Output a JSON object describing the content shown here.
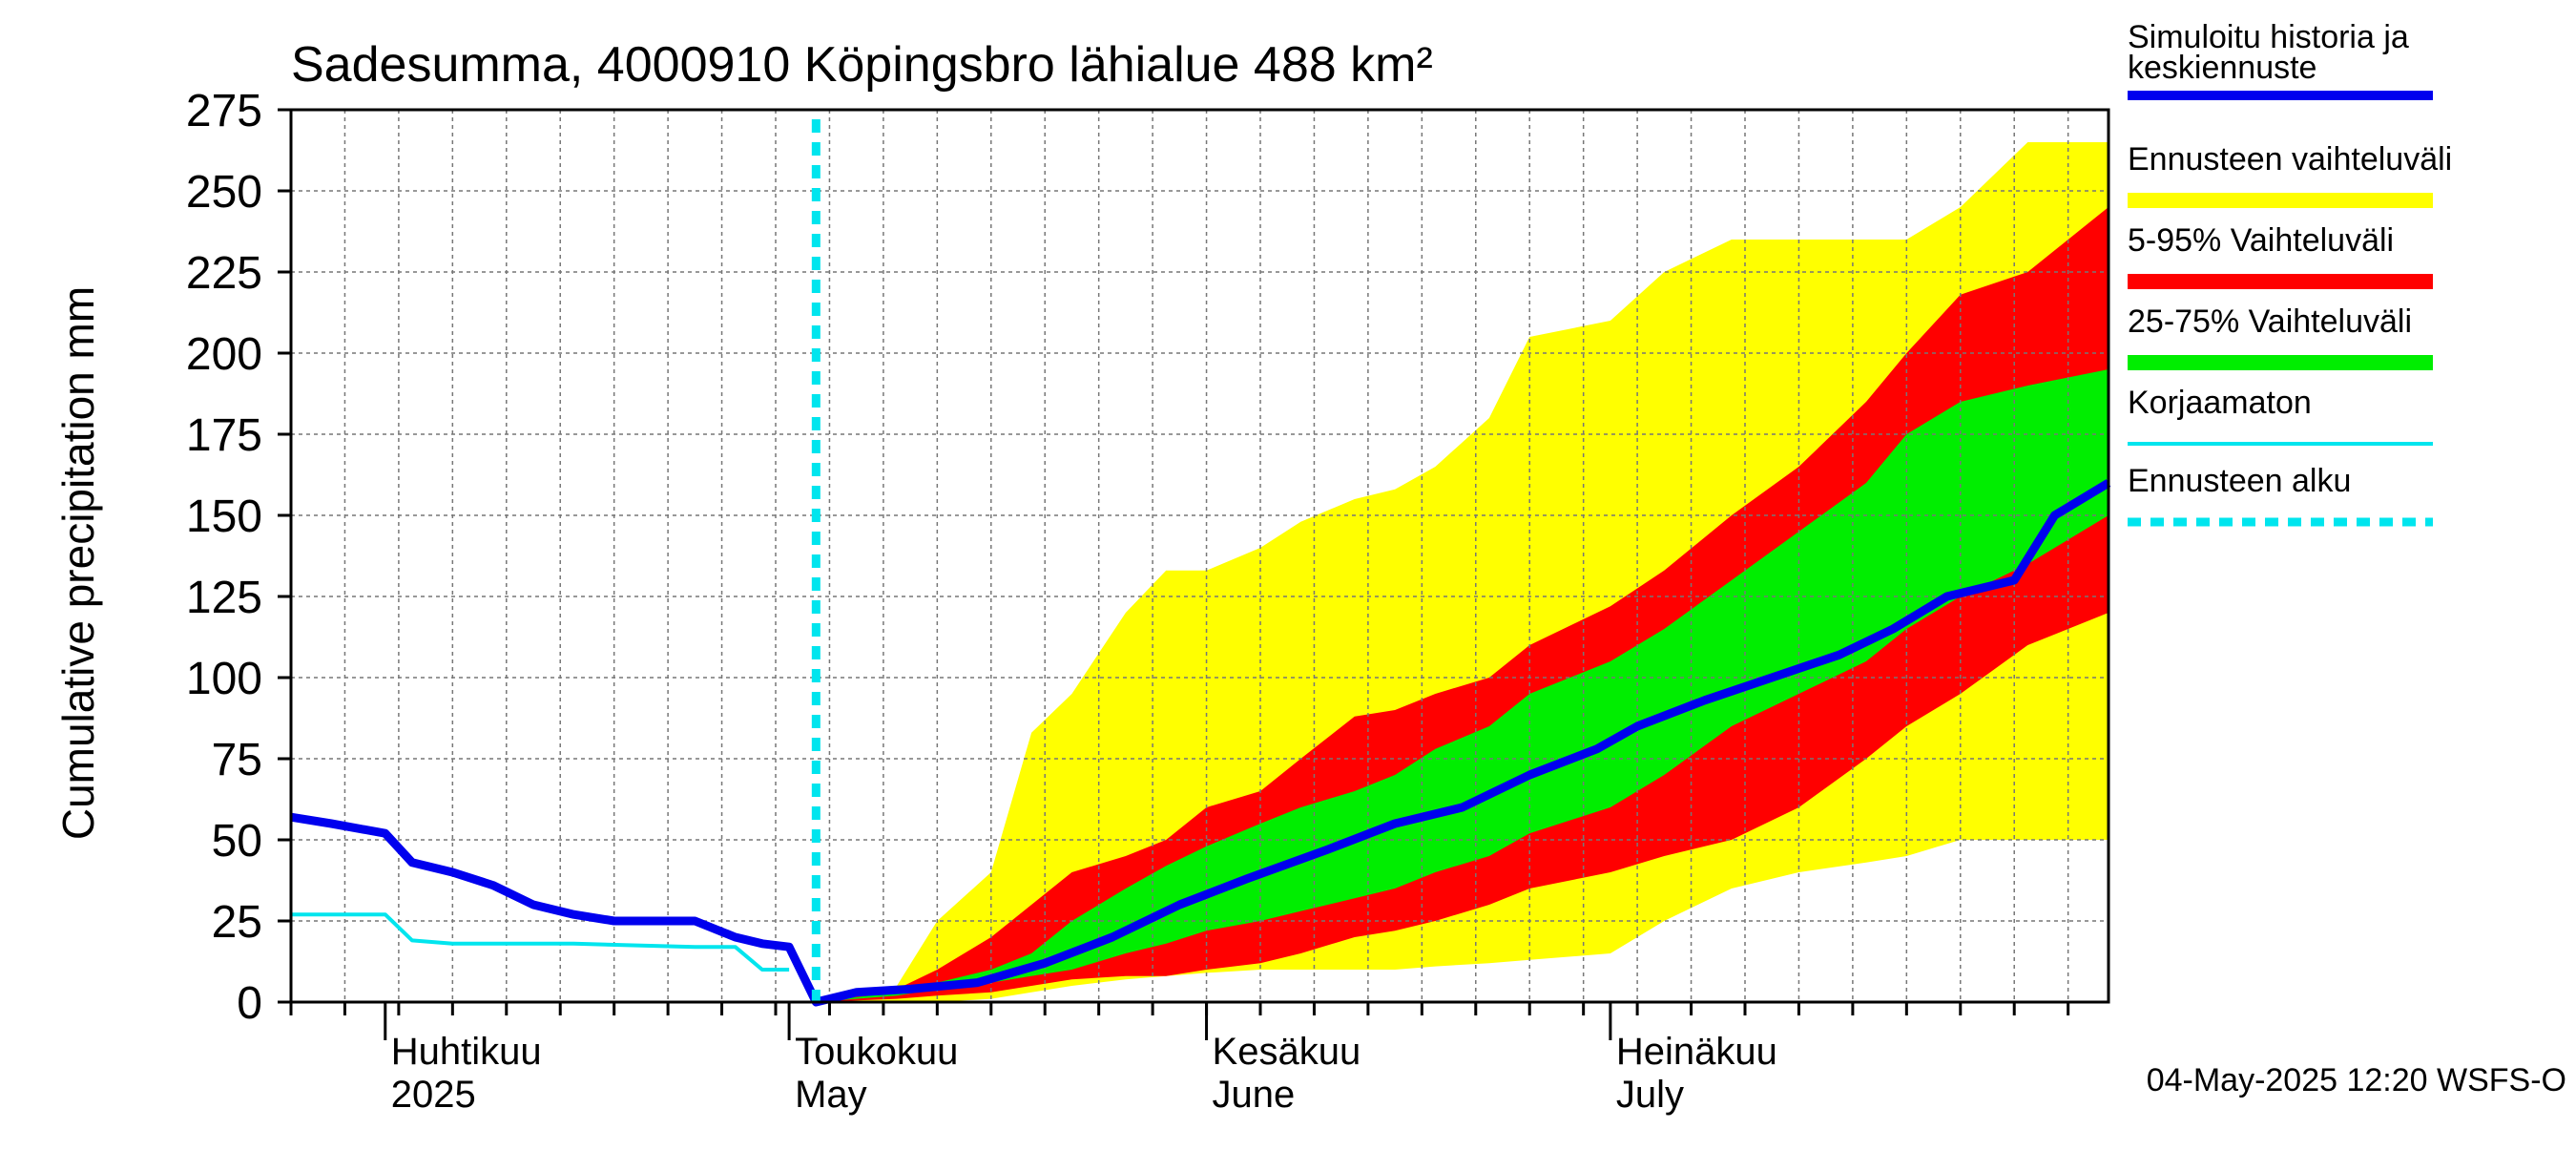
{
  "chart_data": {
    "type": "area",
    "title": "Sadesumma, 4000910 Köpingsbro lähialue 488 km²",
    "ylabel": "Cumulative precipitation   mm",
    "ylim": [
      0,
      275
    ],
    "y_ticks": [
      0,
      25,
      50,
      75,
      100,
      125,
      150,
      175,
      200,
      225,
      250,
      275
    ],
    "grid": true,
    "legend_position": "right",
    "x_range": [
      "2025-03-25",
      "2025-08-07"
    ],
    "x_months": [
      {
        "line1": "Huhtikuu",
        "line2": "2025",
        "date": "2025-04-01"
      },
      {
        "line1": "Toukokuu",
        "line2": "May",
        "date": "2025-05-01"
      },
      {
        "line1": "Kesäkuu",
        "line2": "June",
        "date": "2025-06-01"
      },
      {
        "line1": "Heinäkuu",
        "line2": "July",
        "date": "2025-07-01"
      }
    ],
    "forecast_start": "2025-05-03",
    "footer": "04-May-2025 12:20 WSFS-O",
    "legend": [
      {
        "label": "Simuloitu historia ja keskiennuste",
        "line1": "Simuloitu historia ja",
        "line2": "keskiennuste",
        "color": "#0000ee",
        "style": "thick"
      },
      {
        "label": "Ennusteen vaihteluväli",
        "color": "#ffff00",
        "style": "band"
      },
      {
        "label": "5-95% Vaihteluväli",
        "color": "#ff0000",
        "style": "band"
      },
      {
        "label": "25-75% Vaihteluväli",
        "color": "#00ee00",
        "style": "band"
      },
      {
        "label": "Korjaamaton",
        "color": "#00e5ee",
        "style": "thin"
      },
      {
        "label": "Ennusteen alku",
        "color": "#00e5ee",
        "style": "dashed"
      }
    ],
    "series": [
      {
        "name": "Ennusteen vaihteluväli",
        "color": "#ffff00",
        "x": [
          "2025-05-03",
          "2025-05-09",
          "2025-05-12",
          "2025-05-16",
          "2025-05-19",
          "2025-05-22",
          "2025-05-26",
          "2025-05-29",
          "2025-06-01",
          "2025-06-05",
          "2025-06-08",
          "2025-06-12",
          "2025-06-15",
          "2025-06-18",
          "2025-06-22",
          "2025-06-25",
          "2025-07-01",
          "2025-07-05",
          "2025-07-10",
          "2025-07-15",
          "2025-07-20",
          "2025-07-23",
          "2025-07-27",
          "2025-08-01",
          "2025-08-07"
        ],
        "upper": [
          0,
          5,
          25,
          40,
          83,
          95,
          120,
          133,
          133,
          140,
          148,
          155,
          158,
          165,
          180,
          205,
          210,
          225,
          235,
          235,
          235,
          235,
          245,
          265,
          265
        ],
        "lower": [
          0,
          0,
          0,
          1,
          3,
          5,
          7,
          8,
          9,
          10,
          10,
          10,
          10,
          11,
          12,
          13,
          15,
          25,
          35,
          40,
          43,
          45,
          50,
          50,
          50
        ]
      },
      {
        "name": "5-95% Vaihteluväli",
        "color": "#ff0000",
        "x": [
          "2025-05-03",
          "2025-05-09",
          "2025-05-12",
          "2025-05-16",
          "2025-05-19",
          "2025-05-22",
          "2025-05-26",
          "2025-05-29",
          "2025-06-01",
          "2025-06-05",
          "2025-06-08",
          "2025-06-12",
          "2025-06-15",
          "2025-06-18",
          "2025-06-22",
          "2025-06-25",
          "2025-07-01",
          "2025-07-05",
          "2025-07-10",
          "2025-07-15",
          "2025-07-20",
          "2025-07-23",
          "2025-07-27",
          "2025-08-01",
          "2025-08-07"
        ],
        "upper": [
          0,
          4,
          10,
          20,
          30,
          40,
          45,
          50,
          60,
          65,
          75,
          88,
          90,
          95,
          100,
          110,
          122,
          133,
          150,
          165,
          185,
          200,
          218,
          225,
          245
        ],
        "lower": [
          0,
          1,
          2,
          3,
          5,
          7,
          8,
          8,
          10,
          12,
          15,
          20,
          22,
          25,
          30,
          35,
          40,
          45,
          50,
          60,
          75,
          85,
          95,
          110,
          120
        ]
      },
      {
        "name": "25-75% Vaihteluväli",
        "color": "#00ee00",
        "x": [
          "2025-05-03",
          "2025-05-09",
          "2025-05-12",
          "2025-05-16",
          "2025-05-19",
          "2025-05-22",
          "2025-05-26",
          "2025-05-29",
          "2025-06-01",
          "2025-06-05",
          "2025-06-08",
          "2025-06-12",
          "2025-06-15",
          "2025-06-18",
          "2025-06-22",
          "2025-06-25",
          "2025-07-01",
          "2025-07-05",
          "2025-07-10",
          "2025-07-15",
          "2025-07-20",
          "2025-07-23",
          "2025-07-27",
          "2025-08-01",
          "2025-08-07"
        ],
        "upper": [
          0,
          3,
          6,
          10,
          15,
          25,
          35,
          42,
          48,
          55,
          60,
          65,
          70,
          78,
          85,
          95,
          105,
          115,
          130,
          145,
          160,
          175,
          185,
          190,
          195
        ],
        "lower": [
          0,
          2,
          4,
          6,
          8,
          10,
          15,
          18,
          22,
          25,
          28,
          32,
          35,
          40,
          45,
          52,
          60,
          70,
          85,
          95,
          105,
          115,
          125,
          135,
          150
        ]
      },
      {
        "name": "Simuloitu historia ja keskiennuste",
        "color": "#0000ee",
        "x": [
          "2025-03-25",
          "2025-03-28",
          "2025-04-01",
          "2025-04-03",
          "2025-04-06",
          "2025-04-09",
          "2025-04-12",
          "2025-04-15",
          "2025-04-18",
          "2025-04-21",
          "2025-04-24",
          "2025-04-27",
          "2025-04-29",
          "2025-05-01",
          "2025-05-03",
          "2025-05-06",
          "2025-05-10",
          "2025-05-15",
          "2025-05-20",
          "2025-05-25",
          "2025-05-30",
          "2025-06-04",
          "2025-06-10",
          "2025-06-15",
          "2025-06-20",
          "2025-06-25",
          "2025-06-30",
          "2025-07-03",
          "2025-07-08",
          "2025-07-13",
          "2025-07-18",
          "2025-07-22",
          "2025-07-26",
          "2025-07-31",
          "2025-08-03",
          "2025-08-07"
        ],
        "values": [
          57,
          55,
          52,
          43,
          40,
          36,
          30,
          27,
          25,
          25,
          25,
          20,
          18,
          17,
          0,
          3,
          4,
          6,
          12,
          20,
          30,
          38,
          47,
          55,
          60,
          70,
          78,
          85,
          93,
          100,
          107,
          115,
          125,
          130,
          150,
          160
        ]
      },
      {
        "name": "Korjaamaton",
        "color": "#00e5ee",
        "x": [
          "2025-03-25",
          "2025-04-01",
          "2025-04-03",
          "2025-04-06",
          "2025-04-15",
          "2025-04-24",
          "2025-04-27",
          "2025-04-29",
          "2025-05-01"
        ],
        "values": [
          27,
          27,
          19,
          18,
          18,
          17,
          17,
          10,
          10
        ]
      }
    ]
  }
}
